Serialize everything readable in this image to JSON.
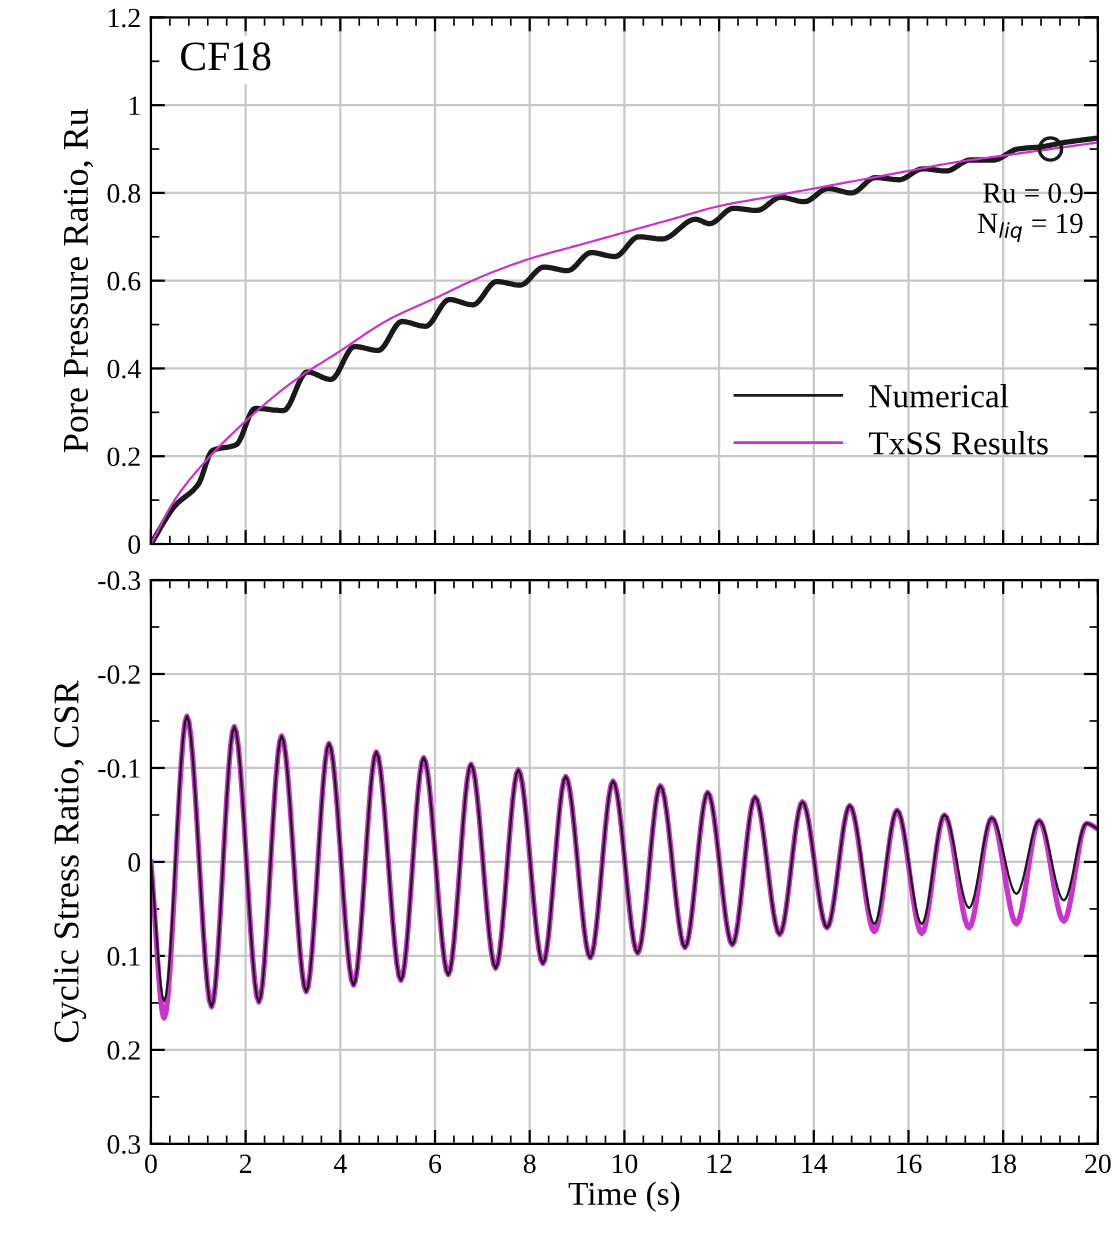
{
  "chart_data": [
    {
      "type": "line",
      "ylabel": "Pore Pressure Ratio, Ru",
      "xlim": [
        0,
        20
      ],
      "xticks": [
        0,
        2,
        4,
        6,
        8,
        10,
        12,
        14,
        16,
        18,
        20
      ],
      "ylim": [
        0,
        1.2
      ],
      "yticks": [
        0,
        0.2,
        0.4,
        0.6,
        0.8,
        1,
        1.2
      ],
      "grid": true,
      "legend": "bottom right",
      "tick_labels": "y",
      "line_style": "solid",
      "annotations": [
        "CF18",
        {
          "text": "Ru = 0.9\nN$_{liq}$ = 19",
          "x": 19,
          "y": 0.9
        }
      ],
      "series": [
        {
          "name": "Numerical",
          "color": "#1a1a1a",
          "x": [
            0,
            0.5,
            1.0,
            1.3,
            1.8,
            2.2,
            2.8,
            3.3,
            3.8,
            4.3,
            4.8,
            5.3,
            5.8,
            6.3,
            6.8,
            7.3,
            7.8,
            8.3,
            8.8,
            9.3,
            9.8,
            10.3,
            10.8,
            11.5,
            11.8,
            12.3,
            12.8,
            13.3,
            13.8,
            14.3,
            14.8,
            15.3,
            15.8,
            16.3,
            16.8,
            17.3,
            17.8,
            18.3,
            18.8,
            19.3,
            20
          ],
          "values": [
            0,
            0.086,
            0.136,
            0.213,
            0.226,
            0.309,
            0.304,
            0.392,
            0.375,
            0.45,
            0.441,
            0.507,
            0.496,
            0.557,
            0.545,
            0.598,
            0.59,
            0.631,
            0.623,
            0.664,
            0.655,
            0.7,
            0.695,
            0.74,
            0.73,
            0.765,
            0.76,
            0.79,
            0.78,
            0.81,
            0.8,
            0.835,
            0.83,
            0.855,
            0.85,
            0.875,
            0.875,
            0.9,
            0.905,
            0.915,
            0.925
          ]
        },
        {
          "name": "TxSS Results",
          "color": "#cc33cc",
          "x": [
            0,
            0.5,
            1,
            2,
            3,
            4,
            5,
            6,
            7,
            8,
            9,
            10,
            11,
            12,
            13,
            14,
            15,
            16,
            17,
            18,
            19,
            20
          ],
          "values": [
            0,
            0.1,
            0.17,
            0.28,
            0.37,
            0.44,
            0.51,
            0.56,
            0.61,
            0.65,
            0.68,
            0.71,
            0.74,
            0.77,
            0.79,
            0.81,
            0.83,
            0.85,
            0.87,
            0.885,
            0.9,
            0.915
          ]
        }
      ]
    },
    {
      "type": "line",
      "xlabel": "Time (s)",
      "ylabel": "Cyclic Stress Ratio, CSR",
      "xlim": [
        0,
        20
      ],
      "xticks": [
        0,
        2,
        4,
        6,
        8,
        10,
        12,
        14,
        16,
        18,
        20
      ],
      "ylim": [
        0.3,
        -0.3
      ],
      "yticks": [
        -0.3,
        -0.2,
        -0.1,
        0,
        0.1,
        0.2,
        0.3
      ],
      "grid": true,
      "line_style": "solid",
      "series": [
        {
          "color": "#cc33cc",
          "x": [
            0,
            0.28,
            0.76,
            1.28,
            1.76,
            2.28,
            2.76,
            3.28,
            3.76,
            4.28,
            4.76,
            5.28,
            5.76,
            6.28,
            6.76,
            7.28,
            7.76,
            8.28,
            8.76,
            9.28,
            9.76,
            10.28,
            10.76,
            11.28,
            11.76,
            12.28,
            12.76,
            13.28,
            13.76,
            14.28,
            14.76,
            15.28,
            15.76,
            16.28,
            16.76,
            17.28,
            17.76,
            18.28,
            18.76,
            19.28,
            19.76,
            20
          ],
          "values": [
            0,
            0.166,
            -0.155,
            0.154,
            -0.144,
            0.149,
            -0.134,
            0.138,
            -0.126,
            0.131,
            -0.117,
            0.126,
            -0.111,
            0.12,
            -0.104,
            0.113,
            -0.098,
            0.108,
            -0.091,
            0.102,
            -0.086,
            0.097,
            -0.081,
            0.091,
            -0.074,
            0.088,
            -0.069,
            0.077,
            -0.064,
            0.07,
            -0.06,
            0.074,
            -0.055,
            0.076,
            -0.05,
            0.07,
            -0.047,
            0.066,
            -0.044,
            0.063,
            -0.041,
            -0.035
          ]
        },
        {
          "color": "#1a1a1a",
          "x": [
            0,
            0.28,
            0.76,
            1.28,
            1.76,
            2.28,
            2.76,
            3.28,
            3.76,
            4.28,
            4.76,
            5.28,
            5.76,
            6.28,
            6.76,
            7.28,
            7.76,
            8.28,
            8.76,
            9.28,
            9.76,
            10.28,
            10.76,
            11.28,
            11.76,
            12.28,
            12.76,
            13.28,
            13.76,
            14.28,
            14.76,
            15.28,
            15.76,
            16.28,
            16.76,
            17.28,
            17.76,
            18.28,
            18.76,
            19.28,
            19.76,
            20
          ],
          "values": [
            0,
            0.148,
            -0.155,
            0.154,
            -0.144,
            0.149,
            -0.134,
            0.138,
            -0.126,
            0.131,
            -0.117,
            0.126,
            -0.111,
            0.12,
            -0.104,
            0.113,
            -0.098,
            0.108,
            -0.091,
            0.102,
            -0.086,
            0.097,
            -0.081,
            0.091,
            -0.074,
            0.088,
            -0.069,
            0.077,
            -0.064,
            0.07,
            -0.06,
            0.066,
            -0.055,
            0.066,
            -0.05,
            0.049,
            -0.047,
            0.034,
            -0.044,
            0.041,
            -0.041,
            -0.035
          ]
        }
      ]
    }
  ]
}
